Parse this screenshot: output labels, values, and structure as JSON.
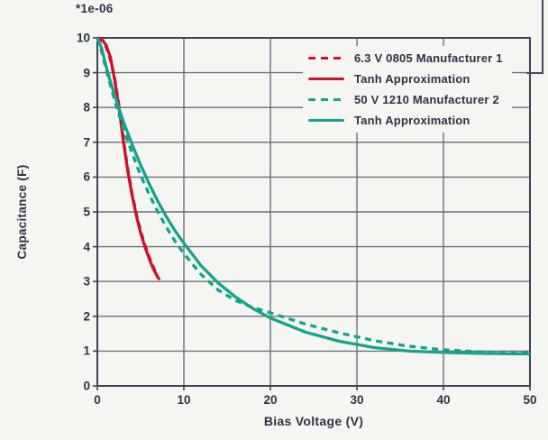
{
  "figure": {
    "background": "#f5f5f2",
    "text_color": "#2b3343",
    "grid_color": "#68707e",
    "spine_color": "#3d4454"
  },
  "chart_data": {
    "type": "line",
    "title": "",
    "xlabel": "Bias Voltage (V)",
    "ylabel": "Capacitance (F)",
    "offset_label": "*1e-06",
    "xlim": [
      0,
      50
    ],
    "ylim": [
      0,
      10
    ],
    "x_ticks": [
      0,
      10,
      20,
      30,
      40,
      50
    ],
    "y_ticks": [
      0,
      1,
      2,
      3,
      4,
      5,
      6,
      7,
      8,
      9,
      10
    ],
    "grid": "on",
    "legend_position": "upper right",
    "series": [
      {
        "name": "6.3 V 0805 Manufacturer 1",
        "color": "#c9132a",
        "line_style": "dashed",
        "points": [
          [
            0,
            10
          ],
          [
            0.5,
            9.93
          ],
          [
            1,
            9.75
          ],
          [
            1.5,
            9.38
          ],
          [
            2,
            8.85
          ],
          [
            2.5,
            8.05
          ],
          [
            3,
            7.1
          ],
          [
            3.5,
            6.25
          ],
          [
            4,
            5.55
          ],
          [
            4.5,
            4.95
          ],
          [
            5,
            4.45
          ],
          [
            5.5,
            4.05
          ],
          [
            6,
            3.7
          ],
          [
            6.5,
            3.4
          ],
          [
            6.9,
            3.15
          ]
        ]
      },
      {
        "name": "Tanh Approximation",
        "color": "#c9132a",
        "line_style": "solid",
        "points": [
          [
            0,
            10
          ],
          [
            0.5,
            9.96
          ],
          [
            1,
            9.8
          ],
          [
            1.5,
            9.45
          ],
          [
            2,
            8.8
          ],
          [
            2.5,
            8.0
          ],
          [
            3,
            7.05
          ],
          [
            3.5,
            6.2
          ],
          [
            4,
            5.5
          ],
          [
            4.5,
            4.9
          ],
          [
            5,
            4.4
          ],
          [
            5.5,
            4.0
          ],
          [
            6,
            3.65
          ],
          [
            6.5,
            3.35
          ],
          [
            7,
            3.12
          ],
          [
            7.2,
            3.05
          ]
        ]
      },
      {
        "name": "50 V 1210 Manufacturer 2",
        "color": "#14a38b",
        "line_style": "dashed",
        "points": [
          [
            0,
            10
          ],
          [
            0.5,
            9.6
          ],
          [
            1,
            9.1
          ],
          [
            1.5,
            8.65
          ],
          [
            2,
            8.2
          ],
          [
            3,
            7.4
          ],
          [
            4,
            6.7
          ],
          [
            5,
            6.05
          ],
          [
            6,
            5.5
          ],
          [
            7,
            5.0
          ],
          [
            8,
            4.55
          ],
          [
            9,
            4.15
          ],
          [
            10,
            3.8
          ],
          [
            12,
            3.2
          ],
          [
            14,
            2.75
          ],
          [
            16,
            2.45
          ],
          [
            18,
            2.25
          ],
          [
            20,
            2.1
          ],
          [
            24,
            1.78
          ],
          [
            28,
            1.52
          ],
          [
            32,
            1.3
          ],
          [
            36,
            1.14
          ],
          [
            40,
            1.04
          ],
          [
            45,
            0.97
          ],
          [
            50,
            0.94
          ]
        ]
      },
      {
        "name": "Tanh Approximation",
        "color": "#14a38b",
        "line_style": "solid",
        "points": [
          [
            0,
            10
          ],
          [
            0.5,
            9.7
          ],
          [
            1,
            9.2
          ],
          [
            1.5,
            8.75
          ],
          [
            2,
            8.35
          ],
          [
            3,
            7.6
          ],
          [
            4,
            6.95
          ],
          [
            5,
            6.35
          ],
          [
            6,
            5.8
          ],
          [
            7,
            5.3
          ],
          [
            8,
            4.85
          ],
          [
            9,
            4.45
          ],
          [
            10,
            4.1
          ],
          [
            12,
            3.45
          ],
          [
            14,
            2.95
          ],
          [
            16,
            2.55
          ],
          [
            18,
            2.22
          ],
          [
            20,
            1.95
          ],
          [
            24,
            1.55
          ],
          [
            28,
            1.28
          ],
          [
            32,
            1.1
          ],
          [
            36,
            1.0
          ],
          [
            40,
            0.96
          ],
          [
            45,
            0.93
          ],
          [
            50,
            0.92
          ]
        ]
      }
    ]
  }
}
